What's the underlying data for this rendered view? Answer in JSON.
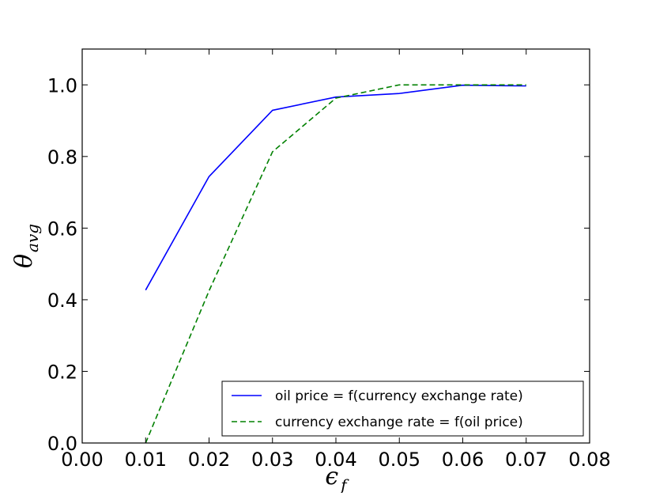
{
  "chart_data": {
    "type": "line",
    "title": "",
    "xlabel": "ϵ",
    "xlabel_sub": "f",
    "ylabel": "θ",
    "ylabel_sub": "avg",
    "xlim": [
      0.0,
      0.08
    ],
    "ylim": [
      0.0,
      1.1
    ],
    "xticks": [
      0.0,
      0.01,
      0.02,
      0.03,
      0.04,
      0.05,
      0.06,
      0.07,
      0.08
    ],
    "xtick_labels": [
      "0.00",
      "0.01",
      "0.02",
      "0.03",
      "0.04",
      "0.05",
      "0.06",
      "0.07",
      "0.08"
    ],
    "yticks": [
      0.0,
      0.2,
      0.4,
      0.6,
      0.8,
      1.0
    ],
    "ytick_labels": [
      "0.0",
      "0.2",
      "0.4",
      "0.6",
      "0.8",
      "1.0"
    ],
    "grid": false,
    "legend_position": "bottom-right",
    "series": [
      {
        "name": "oil price = f(currency exchange rate)",
        "color": "#0000ff",
        "linestyle": "solid",
        "x": [
          0.01,
          0.02,
          0.03,
          0.04,
          0.05,
          0.06,
          0.07
        ],
        "y": [
          0.427,
          0.744,
          0.929,
          0.966,
          0.976,
          0.999,
          0.997
        ]
      },
      {
        "name": "currency exchange rate = f(oil price)",
        "color": "#008000",
        "linestyle": "dashed",
        "x": [
          0.01,
          0.02,
          0.03,
          0.04,
          0.05,
          0.06,
          0.07
        ],
        "y": [
          0.0,
          0.425,
          0.813,
          0.963,
          1.0,
          1.0,
          1.0
        ]
      }
    ]
  }
}
